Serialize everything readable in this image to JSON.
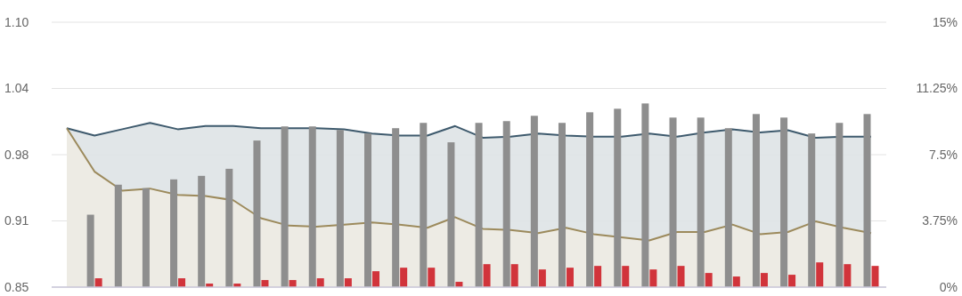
{
  "chart_data": {
    "type": "area",
    "categories": [
      null,
      null,
      null,
      null,
      null,
      null,
      null,
      null,
      null,
      null,
      null,
      null,
      null,
      null,
      null,
      null,
      null,
      null,
      null,
      null,
      null,
      null,
      null,
      null,
      null,
      null,
      null,
      null,
      null,
      null
    ],
    "series": [
      {
        "color": "#3e5a6d",
        "values": [
          1.0,
          0.993,
          0.999,
          1.005,
          0.999,
          1.002,
          1.002,
          1.0,
          1.0,
          1.0,
          0.999,
          0.995,
          0.993,
          0.993,
          1.002,
          0.991,
          0.992,
          0.995,
          0.993,
          0.992,
          0.992,
          0.995,
          0.992,
          0.996,
          0.999,
          0.996,
          0.998,
          0.991,
          0.992,
          0.992
        ]
      },
      {
        "color": "#9c8a5c",
        "values": [
          1.0,
          0.959,
          0.941,
          0.943,
          0.937,
          0.936,
          0.932,
          0.915,
          0.908,
          0.907,
          0.909,
          0.911,
          0.909,
          0.906,
          0.916,
          0.905,
          0.904,
          0.901,
          0.906,
          0.9,
          0.897,
          0.894,
          0.902,
          0.902,
          0.909,
          0.9,
          0.902,
          0.912,
          0.906,
          0.901
        ]
      },
      {
        "type": "bar",
        "axis": "y2",
        "color": "#8e8e8e",
        "values": [
          null,
          4.1,
          5.8,
          5.6,
          6.1,
          6.3,
          6.7,
          8.3,
          9.1,
          9.1,
          8.9,
          8.7,
          9.0,
          9.3,
          8.2,
          9.3,
          9.4,
          9.7,
          9.3,
          9.9,
          10.1,
          10.4,
          9.6,
          9.6,
          9.0,
          9.8,
          9.6,
          8.7,
          9.3,
          9.8
        ]
      },
      {
        "type": "bar",
        "axis": "y2",
        "color": "#d1343b",
        "values": [
          null,
          0.5,
          null,
          null,
          0.5,
          0.2,
          0.2,
          0.4,
          0.4,
          0.5,
          0.5,
          0.9,
          1.1,
          1.1,
          0.3,
          1.3,
          1.3,
          1.0,
          1.1,
          1.2,
          1.2,
          1.0,
          1.2,
          0.8,
          0.6,
          0.8,
          0.7,
          1.4,
          1.3,
          1.2
        ]
      }
    ],
    "ylim": [
      0.85,
      1.1
    ],
    "yticks": [
      0.85,
      {
        "value": 0.9125,
        "label": "0.91"
      },
      {
        "value": 0.975,
        "label": "0.98"
      },
      {
        "value": 1.0375,
        "label": "1.04"
      },
      {
        "value": 1.1,
        "label": "1.10"
      }
    ],
    "y2lim": [
      0,
      15
    ],
    "y2ticks": [
      {
        "value": 0,
        "label": "0%"
      },
      {
        "value": 3.75,
        "label": "3.75%"
      },
      {
        "value": 7.5,
        "label": "7.5%"
      },
      {
        "value": 11.25,
        "label": "11.25%"
      },
      {
        "value": 15,
        "label": "15%"
      }
    ],
    "grid": "y"
  }
}
